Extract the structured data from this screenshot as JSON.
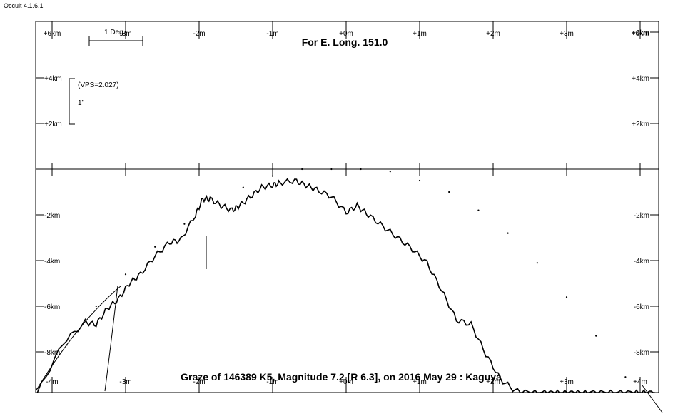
{
  "app_title": "Occult 4.1.6.1",
  "chart_data": {
    "type": "line",
    "title": "Graze of  146389 K5,  Magnitude 7.2 [R 6.3],  on 2016 May 29  :  Kaguya",
    "subtitle": "For E. Long. 151.0",
    "scale_bar_label": "1 Deg",
    "vps_label": "(VPS=2.027)",
    "vertical_scale_label": "1\"",
    "top_axis_labels": [
      "+6km",
      "-3m",
      "-2m",
      "-1m",
      "+0m",
      "+1m",
      "+2m",
      "+3m",
      "+6km"
    ],
    "bottom_axis_labels": [
      "-4m",
      "-3m",
      "-2m",
      "-1m",
      "+0m",
      "+1m",
      "+2m",
      "+3m",
      "+4m"
    ],
    "left_y_labels": [
      "+4km",
      "+2km",
      "-2km",
      "-4km",
      "-6km",
      "-8km"
    ],
    "right_y_labels": [
      "+6km",
      "+4km",
      "+2km",
      "-2km",
      "-4km",
      "-6km",
      "-8km"
    ],
    "x_unit": "minutes",
    "y_unit": "km",
    "xlim": [
      -4.2,
      4.3
    ],
    "ylim": [
      -9.8,
      6.3
    ],
    "grid": false,
    "series": [
      {
        "role": "limb profile",
        "x": [
          -4.2,
          -3.85,
          -3.55,
          -3.4,
          -3.25,
          -3.1,
          -2.95,
          -2.8,
          -2.6,
          -2.4,
          -2.25,
          -2.05,
          -1.95,
          -1.85,
          -1.7,
          -1.55,
          -1.45,
          -1.3,
          -1.15,
          -1.0,
          -0.9,
          -0.7,
          -0.55,
          -0.4,
          -0.2,
          0.0,
          0.15,
          0.3,
          0.5,
          0.7,
          0.9,
          1.1,
          1.3,
          1.5,
          1.7,
          1.9,
          2.1,
          2.3,
          2.5,
          2.7,
          2.85,
          3.0,
          3.15,
          3.3,
          3.5,
          3.7,
          3.9,
          4.05,
          4.2
        ],
        "y": [
          -9.8,
          -7.6,
          -6.7,
          -6.8,
          -6.1,
          -5.7,
          -5.0,
          -4.6,
          -3.8,
          -3.2,
          -3.1,
          -2.0,
          -1.3,
          -1.3,
          -1.6,
          -1.8,
          -1.6,
          -1.2,
          -0.8,
          -0.7,
          -0.6,
          -0.5,
          -0.7,
          -0.9,
          -1.2,
          -1.9,
          -1.6,
          -2.0,
          -2.5,
          -3.0,
          -3.5,
          -4.1,
          -5.3,
          -6.6,
          -6.8,
          -8.1,
          -9.2,
          -9.7,
          -9.8,
          -9.8,
          -9.8,
          -9.8,
          -9.8,
          -9.8,
          -9.8,
          -9.8,
          -9.8,
          -9.8,
          -9.8
        ]
      },
      {
        "role": "mean limb (dotted)",
        "x": [
          -4.2,
          -3.8,
          -3.4,
          -3.0,
          -2.6,
          -2.2,
          -1.8,
          -1.4,
          -1.0,
          -0.6,
          -0.2,
          0.2,
          0.6,
          1.0,
          1.4,
          1.8,
          2.2,
          2.6,
          3.0,
          3.4,
          3.8,
          4.2
        ],
        "y": [
          -9.6,
          -7.7,
          -6.0,
          -4.6,
          -3.4,
          -2.4,
          -1.5,
          -0.8,
          -0.3,
          0.0,
          0.0,
          0.0,
          -0.1,
          -0.5,
          -1.0,
          -1.8,
          -2.8,
          -4.1,
          -5.6,
          -7.3,
          -9.1,
          -11.0
        ]
      }
    ]
  }
}
